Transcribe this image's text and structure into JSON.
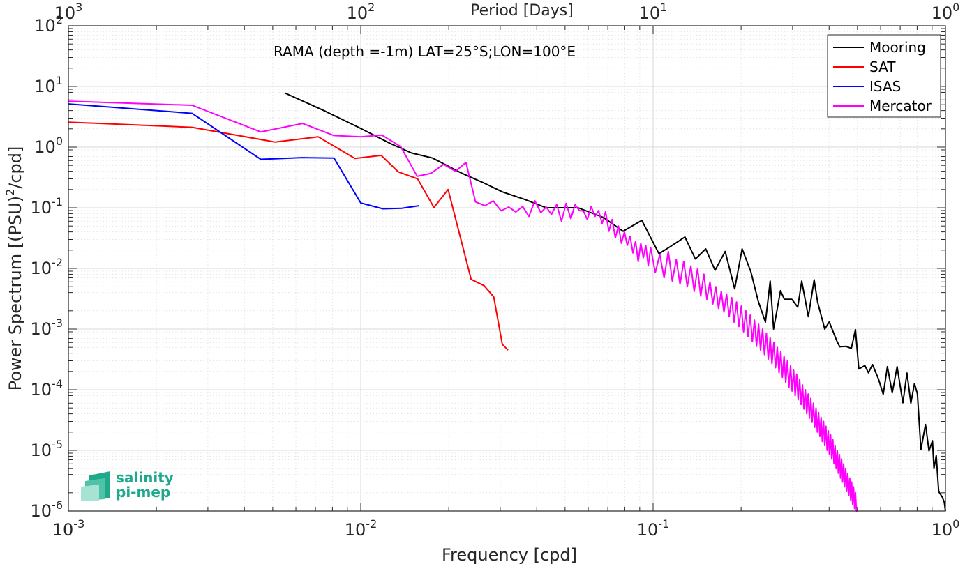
{
  "chart_data": {
    "type": "line",
    "title": "RAMA (depth =-1m) LAT=25°S;LON=100°E",
    "xlabel": "Frequency [cpd]",
    "ylabel": "Power Spectrum [(PSU)²/cpd]",
    "ylabel_main": "Power Spectrum [(PSU)",
    "ylabel_sup": "2",
    "ylabel_end": "/cpd]",
    "top_xlabel": "Period [Days]",
    "xscale": "log",
    "yscale": "log",
    "xlim": [
      0.001,
      1
    ],
    "ylim": [
      1e-06,
      100
    ],
    "grid": true,
    "legend_position": "top-right",
    "x_ticks": [
      {
        "base": "10",
        "exp": "-3",
        "value": 0.001
      },
      {
        "base": "10",
        "exp": "-2",
        "value": 0.01
      },
      {
        "base": "10",
        "exp": "-1",
        "value": 0.1
      },
      {
        "base": "10",
        "exp": "0",
        "value": 1
      }
    ],
    "top_ticks": [
      {
        "base": "10",
        "exp": "3",
        "value": 0.001
      },
      {
        "base": "10",
        "exp": "2",
        "value": 0.01
      },
      {
        "base": "10",
        "exp": "1",
        "value": 0.1
      },
      {
        "base": "10",
        "exp": "0",
        "value": 1
      }
    ],
    "y_ticks": [
      {
        "base": "10",
        "exp": "2",
        "value": 100
      },
      {
        "base": "10",
        "exp": "1",
        "value": 10
      },
      {
        "base": "10",
        "exp": "0",
        "value": 1
      },
      {
        "base": "10",
        "exp": "-1",
        "value": 0.1
      },
      {
        "base": "10",
        "exp": "-2",
        "value": 0.01
      },
      {
        "base": "10",
        "exp": "-3",
        "value": 0.001
      },
      {
        "base": "10",
        "exp": "-4",
        "value": 0.0001
      },
      {
        "base": "10",
        "exp": "-5",
        "value": 1e-05
      },
      {
        "base": "10",
        "exp": "-6",
        "value": 1e-06
      }
    ],
    "series": [
      {
        "name": "Mooring",
        "color": "#000000",
        "x": [
          0.0055,
          0.0074,
          0.0098,
          0.0126,
          0.0149,
          0.0176,
          0.0222,
          0.0262,
          0.0305,
          0.0364,
          0.0431,
          0.0554,
          0.0677,
          0.0789,
          0.0915,
          0.1047,
          0.1131,
          0.1285,
          0.1395,
          0.1513,
          0.1629,
          0.1764,
          0.1901,
          0.2016,
          0.2159,
          0.2288,
          0.2423,
          0.2515,
          0.2583,
          0.2727,
          0.2812,
          0.2982,
          0.3125,
          0.3223,
          0.3397,
          0.3554,
          0.3651,
          0.3865,
          0.4002,
          0.4242,
          0.4349,
          0.4555,
          0.4766,
          0.4923,
          0.5053,
          0.53,
          0.5451,
          0.5628,
          0.5901,
          0.6124,
          0.6331,
          0.6576,
          0.6832,
          0.6983,
          0.7153,
          0.7382,
          0.7615,
          0.7836,
          0.8019,
          0.8243,
          0.8546,
          0.8784,
          0.9029,
          0.9134,
          0.9298,
          0.9481,
          0.9749,
          0.9907,
          1.0
        ],
        "y": [
          7.8,
          4.1,
          2.13,
          1.15,
          0.8,
          0.66,
          0.37,
          0.26,
          0.183,
          0.137,
          0.1,
          0.1,
          0.069,
          0.041,
          0.062,
          0.0175,
          0.022,
          0.033,
          0.0143,
          0.021,
          0.0093,
          0.019,
          0.0046,
          0.021,
          0.0088,
          0.0029,
          0.0013,
          0.0062,
          0.001,
          0.0043,
          0.0031,
          0.0031,
          0.0023,
          0.0062,
          0.0016,
          0.0065,
          0.0028,
          0.001,
          0.00131,
          0.00065,
          0.00051,
          0.00052,
          0.00048,
          0.00098,
          0.00022,
          0.00025,
          0.00019,
          0.00026,
          0.00015,
          8.4e-05,
          0.00024,
          8.9e-05,
          0.00024,
          0.000123,
          6.1e-05,
          0.000188,
          6e-05,
          0.000127,
          8.5e-05,
          1.03e-05,
          2.67e-05,
          9.8e-06,
          1.44e-05,
          5e-06,
          8.2e-06,
          2.1e-06,
          1.7e-06,
          1.4e-06,
          9e-07
        ]
      },
      {
        "name": "SAT",
        "color": "#ff0000",
        "x": [
          0.001,
          0.00265,
          0.0051,
          0.00715,
          0.00955,
          0.01175,
          0.01345,
          0.01565,
          0.0178,
          0.0199,
          0.02385,
          0.0264,
          0.0285,
          0.0305,
          0.0319
        ],
        "y": [
          2.58,
          2.12,
          1.21,
          1.48,
          0.65,
          0.73,
          0.39,
          0.3,
          0.101,
          0.2,
          0.0066,
          0.0052,
          0.0034,
          0.00056,
          0.00045
        ]
      },
      {
        "name": "ISAS",
        "color": "#0000ff",
        "x": [
          0.001,
          0.00265,
          0.00455,
          0.0063,
          0.0081,
          0.01,
          0.0119,
          0.0138,
          0.0158
        ],
        "y": [
          5.15,
          3.6,
          0.63,
          0.67,
          0.66,
          0.12,
          0.096,
          0.098,
          0.108
        ]
      },
      {
        "name": "Mercator",
        "color": "#ff00ff",
        "x": [
          0.001,
          0.00265,
          0.00455,
          0.00632,
          0.0081,
          0.01,
          0.0118,
          0.0137,
          0.0156,
          0.0174,
          0.0192,
          0.0211,
          0.0229,
          0.0247,
          0.0266,
          0.0284,
          0.0302,
          0.0321,
          0.0339,
          0.0358,
          0.0376,
          0.0394,
          0.0413,
          0.0431,
          0.0449,
          0.0468,
          0.0486,
          0.0504,
          0.0523,
          0.0541,
          0.0559,
          0.0578,
          0.0596,
          0.0614,
          0.0633,
          0.0651,
          0.0669,
          0.0688,
          0.0706,
          0.0724,
          0.0743,
          0.0761,
          0.0779,
          0.0798,
          0.0816,
          0.0834,
          0.0853,
          0.0871,
          0.0889,
          0.0908,
          0.0926,
          0.0944,
          0.0963,
          0.0981,
          0.1017,
          0.1054,
          0.109,
          0.1127,
          0.1163,
          0.12,
          0.1236,
          0.1273,
          0.1309,
          0.1346,
          0.1382,
          0.1419,
          0.1455,
          0.1492,
          0.1528,
          0.1565,
          0.1601,
          0.1638,
          0.1674,
          0.1711,
          0.1747,
          0.1784,
          0.182,
          0.1857,
          0.1893,
          0.193,
          0.1966,
          0.2003,
          0.2039,
          0.2076,
          0.2112,
          0.2149,
          0.2185,
          0.2222,
          0.2258,
          0.2295,
          0.2331,
          0.2368,
          0.2404,
          0.2441,
          0.2477,
          0.2514,
          0.255,
          0.2587,
          0.2623,
          0.266,
          0.2696,
          0.2733,
          0.2769,
          0.2806,
          0.2842,
          0.2879,
          0.2915,
          0.2952,
          0.2988,
          0.3025,
          0.3061,
          0.3098,
          0.3134,
          0.3171,
          0.3207,
          0.3244,
          0.328,
          0.3317,
          0.3353,
          0.339,
          0.3426,
          0.3463,
          0.3499,
          0.3536,
          0.3572,
          0.3609,
          0.3645,
          0.3682,
          0.3718,
          0.3755,
          0.3791,
          0.3828,
          0.3864,
          0.3901,
          0.3937,
          0.3974,
          0.401,
          0.4047,
          0.4083,
          0.412,
          0.4156,
          0.4193,
          0.4229,
          0.4266,
          0.4302,
          0.4339,
          0.4375,
          0.4412,
          0.4448,
          0.4485,
          0.4521,
          0.4558,
          0.4594,
          0.4631,
          0.4667,
          0.4704,
          0.474,
          0.4777,
          0.4813,
          0.485,
          0.4886,
          0.4923,
          0.4959,
          0.4995
        ],
        "y": [
          5.7,
          4.9,
          1.78,
          2.45,
          1.55,
          1.48,
          1.58,
          1.02,
          0.33,
          0.37,
          0.52,
          0.4,
          0.56,
          0.125,
          0.108,
          0.13,
          0.089,
          0.103,
          0.085,
          0.105,
          0.072,
          0.13,
          0.083,
          0.103,
          0.078,
          0.113,
          0.06,
          0.118,
          0.066,
          0.112,
          0.09,
          0.088,
          0.064,
          0.105,
          0.072,
          0.09,
          0.055,
          0.086,
          0.041,
          0.064,
          0.032,
          0.05,
          0.026,
          0.04,
          0.024,
          0.034,
          0.018,
          0.028,
          0.013,
          0.026,
          0.015,
          0.024,
          0.011,
          0.022,
          0.0085,
          0.017,
          0.007,
          0.019,
          0.0062,
          0.014,
          0.0055,
          0.013,
          0.005,
          0.011,
          0.0042,
          0.01,
          0.0035,
          0.008,
          0.0031,
          0.006,
          0.0026,
          0.005,
          0.0022,
          0.0042,
          0.0019,
          0.0038,
          0.0016,
          0.0033,
          0.0013,
          0.0028,
          0.0011,
          0.0024,
          0.0009,
          0.002,
          0.00075,
          0.0017,
          0.00062,
          0.0014,
          0.00052,
          0.0012,
          0.00045,
          0.001,
          0.00038,
          0.00085,
          0.00032,
          0.00072,
          0.00027,
          0.0006,
          0.00023,
          0.0005,
          0.00019,
          0.00043,
          0.00016,
          0.00036,
          0.00013,
          0.0003,
          0.00011,
          0.00025,
          9.5e-05,
          0.00021,
          8e-05,
          0.00018,
          6.8e-05,
          0.00015,
          5.7e-05,
          0.00012,
          4.8e-05,
          0.0001,
          4e-05,
          8.5e-05,
          3.4e-05,
          7.2e-05,
          2.9e-05,
          6e-05,
          2.4e-05,
          5e-05,
          2e-05,
          4.2e-05,
          1.7e-05,
          3.5e-05,
          1.4e-05,
          3e-05,
          1.2e-05,
          2.5e-05,
          1e-05,
          2.1e-05,
          8.5e-06,
          1.8e-05,
          7.2e-06,
          1.5e-05,
          6e-06,
          1.2e-05,
          5e-06,
          1e-05,
          4.2e-06,
          8.5e-06,
          3.5e-06,
          7.2e-06,
          3e-06,
          6e-06,
          2.5e-06,
          5e-06,
          2.1e-06,
          4.2e-06,
          1.8e-06,
          3.5e-06,
          1.5e-06,
          3e-06,
          1.3e-06,
          2.5e-06,
          1.1e-06,
          2e-06,
          9e-07,
          9e-07
        ]
      }
    ]
  },
  "logo": {
    "line1": "salinity",
    "line2": "pi-mep",
    "color": "#1ea88c"
  }
}
